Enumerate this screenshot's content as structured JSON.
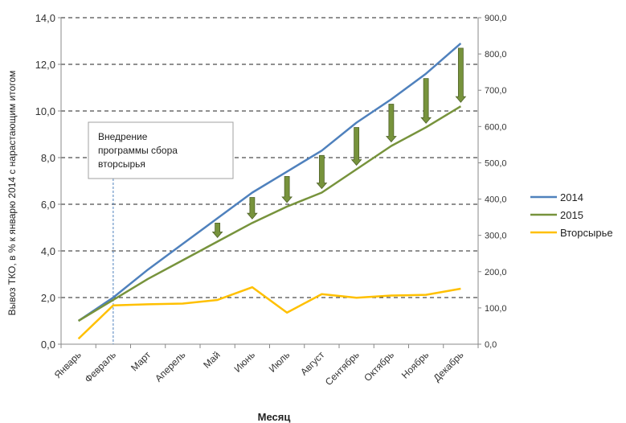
{
  "chart_data": {
    "type": "line",
    "xlabel": "Месяц",
    "ylabel": "Вывоз ТКО, в % к январю 2014 с нарастающим итогом",
    "ylim": [
      0,
      14
    ],
    "y_ticks": [
      "0,0",
      "2,0",
      "4,0",
      "6,0",
      "8,0",
      "10,0",
      "12,0",
      "14,0"
    ],
    "y2lim": [
      0,
      900
    ],
    "y2_ticks": [
      "0,0",
      "100,0",
      "200,0",
      "300,0",
      "400,0",
      "500,0",
      "600,0",
      "700,0",
      "800,0",
      "900,0"
    ],
    "grid": true,
    "legend_position": "right",
    "categories": [
      "Январь",
      "Февраль",
      "Март",
      "Аперель",
      "Май",
      "Июнь",
      "Июль",
      "Август",
      "Сентябрь",
      "Октябрь",
      "Ноябрь",
      "Декабрь"
    ],
    "series": [
      {
        "name": "2014",
        "axis": "left",
        "color": "#4f81bd",
        "values": [
          1.0,
          2.0,
          3.2,
          4.3,
          5.4,
          6.5,
          7.4,
          8.3,
          9.5,
          10.5,
          11.6,
          12.9
        ]
      },
      {
        "name": "2015",
        "axis": "left",
        "color": "#77933c",
        "values": [
          1.0,
          1.9,
          2.8,
          3.6,
          4.4,
          5.2,
          5.9,
          6.5,
          7.5,
          8.5,
          9.3,
          10.2
        ]
      },
      {
        "name": "Вторсырье",
        "axis": "right",
        "color": "#ffc000",
        "values": [
          15,
          107,
          110,
          112,
          122,
          157,
          87,
          138,
          128,
          134,
          136,
          153
        ]
      }
    ],
    "arrows": {
      "color": "#77933c",
      "categories": [
        "Май",
        "Июнь",
        "Июль",
        "Август",
        "Сентябрь",
        "Октябрь",
        "Ноябрь",
        "Декабрь"
      ]
    },
    "vertical_marker": {
      "category": "Февраль",
      "color": "#4f81bd"
    },
    "annotation": {
      "lines": [
        "Внедрение",
        "программы сбора",
        "вторсырья"
      ]
    }
  }
}
